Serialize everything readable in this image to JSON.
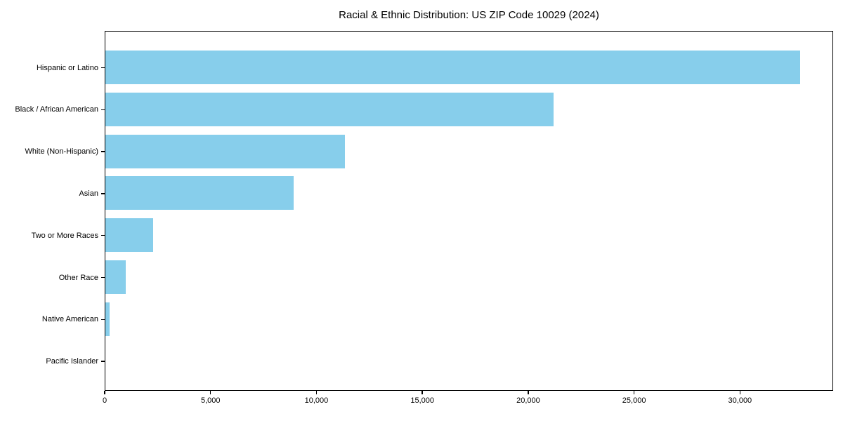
{
  "chart_data": {
    "type": "bar",
    "orientation": "horizontal",
    "title": "Racial & Ethnic Distribution: US ZIP Code 10029 (2024)",
    "categories": [
      "Hispanic or Latino",
      "Black / African American",
      "White (Non-Hispanic)",
      "Asian",
      "Two or More Races",
      "Other Race",
      "Native American",
      "Pacific Islander"
    ],
    "values": [
      32800,
      21150,
      11300,
      8900,
      2250,
      950,
      200,
      0
    ],
    "xlabel": "",
    "ylabel": "",
    "xlim": [
      0,
      34400
    ],
    "xticks": [
      0,
      5000,
      10000,
      15000,
      20000,
      25000,
      30000
    ],
    "xtick_labels": [
      "0",
      "5,000",
      "10,000",
      "15,000",
      "20,000",
      "25,000",
      "30,000"
    ],
    "bar_color": "#87CEEB",
    "background_color": "#ffffff",
    "spine_color": "#000000",
    "grid": false,
    "legend": "none"
  }
}
